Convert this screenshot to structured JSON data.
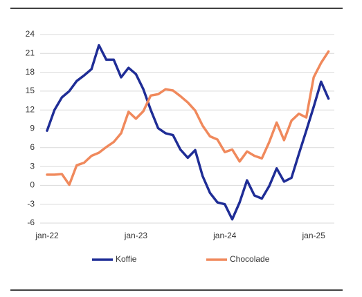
{
  "chart_data": {
    "type": "line",
    "categories": [
      "jan-22",
      null,
      null,
      null,
      null,
      null,
      null,
      null,
      null,
      null,
      null,
      null,
      "jan-23",
      null,
      null,
      null,
      null,
      null,
      null,
      null,
      null,
      null,
      null,
      null,
      "jan-24",
      null,
      null,
      null,
      null,
      null,
      null,
      null,
      null,
      null,
      null,
      null,
      "jan-25",
      null,
      null
    ],
    "series": [
      {
        "name": "Koffie",
        "color": "#1f2d96",
        "values": [
          8.7,
          12,
          14,
          15,
          16.6,
          17.5,
          18.5,
          22.3,
          20,
          20,
          17.2,
          18.7,
          17.7,
          15.3,
          12,
          9.1,
          8.3,
          8,
          5.7,
          4.4,
          5.6,
          1.5,
          -1.2,
          -2.7,
          -3,
          -5.4,
          -2.7,
          0.8,
          -1.6,
          -2.1,
          -0.1,
          2.7,
          0.6,
          1.2,
          5,
          8.7,
          12.5,
          16.5,
          13.8
        ]
      },
      {
        "name": "Chocolade",
        "color": "#f0895c",
        "values": [
          1.7,
          1.7,
          1.8,
          0.1,
          3.2,
          3.6,
          4.7,
          5.2,
          6.1,
          6.9,
          8.3,
          11.7,
          10.6,
          11.8,
          14.3,
          14.5,
          15.3,
          15.1,
          14.2,
          13.2,
          11.9,
          9.5,
          7.8,
          7.3,
          5.3,
          5.7,
          3.8,
          5.4,
          4.7,
          4.3,
          6.9,
          10,
          7.2,
          10.3,
          11.4,
          10.8,
          17.2,
          19.5,
          21.3
        ]
      }
    ],
    "ylim": [
      -6,
      24
    ],
    "yticks": [
      -6,
      -3,
      0,
      3,
      6,
      9,
      12,
      15,
      18,
      21,
      24
    ],
    "grid": true
  }
}
